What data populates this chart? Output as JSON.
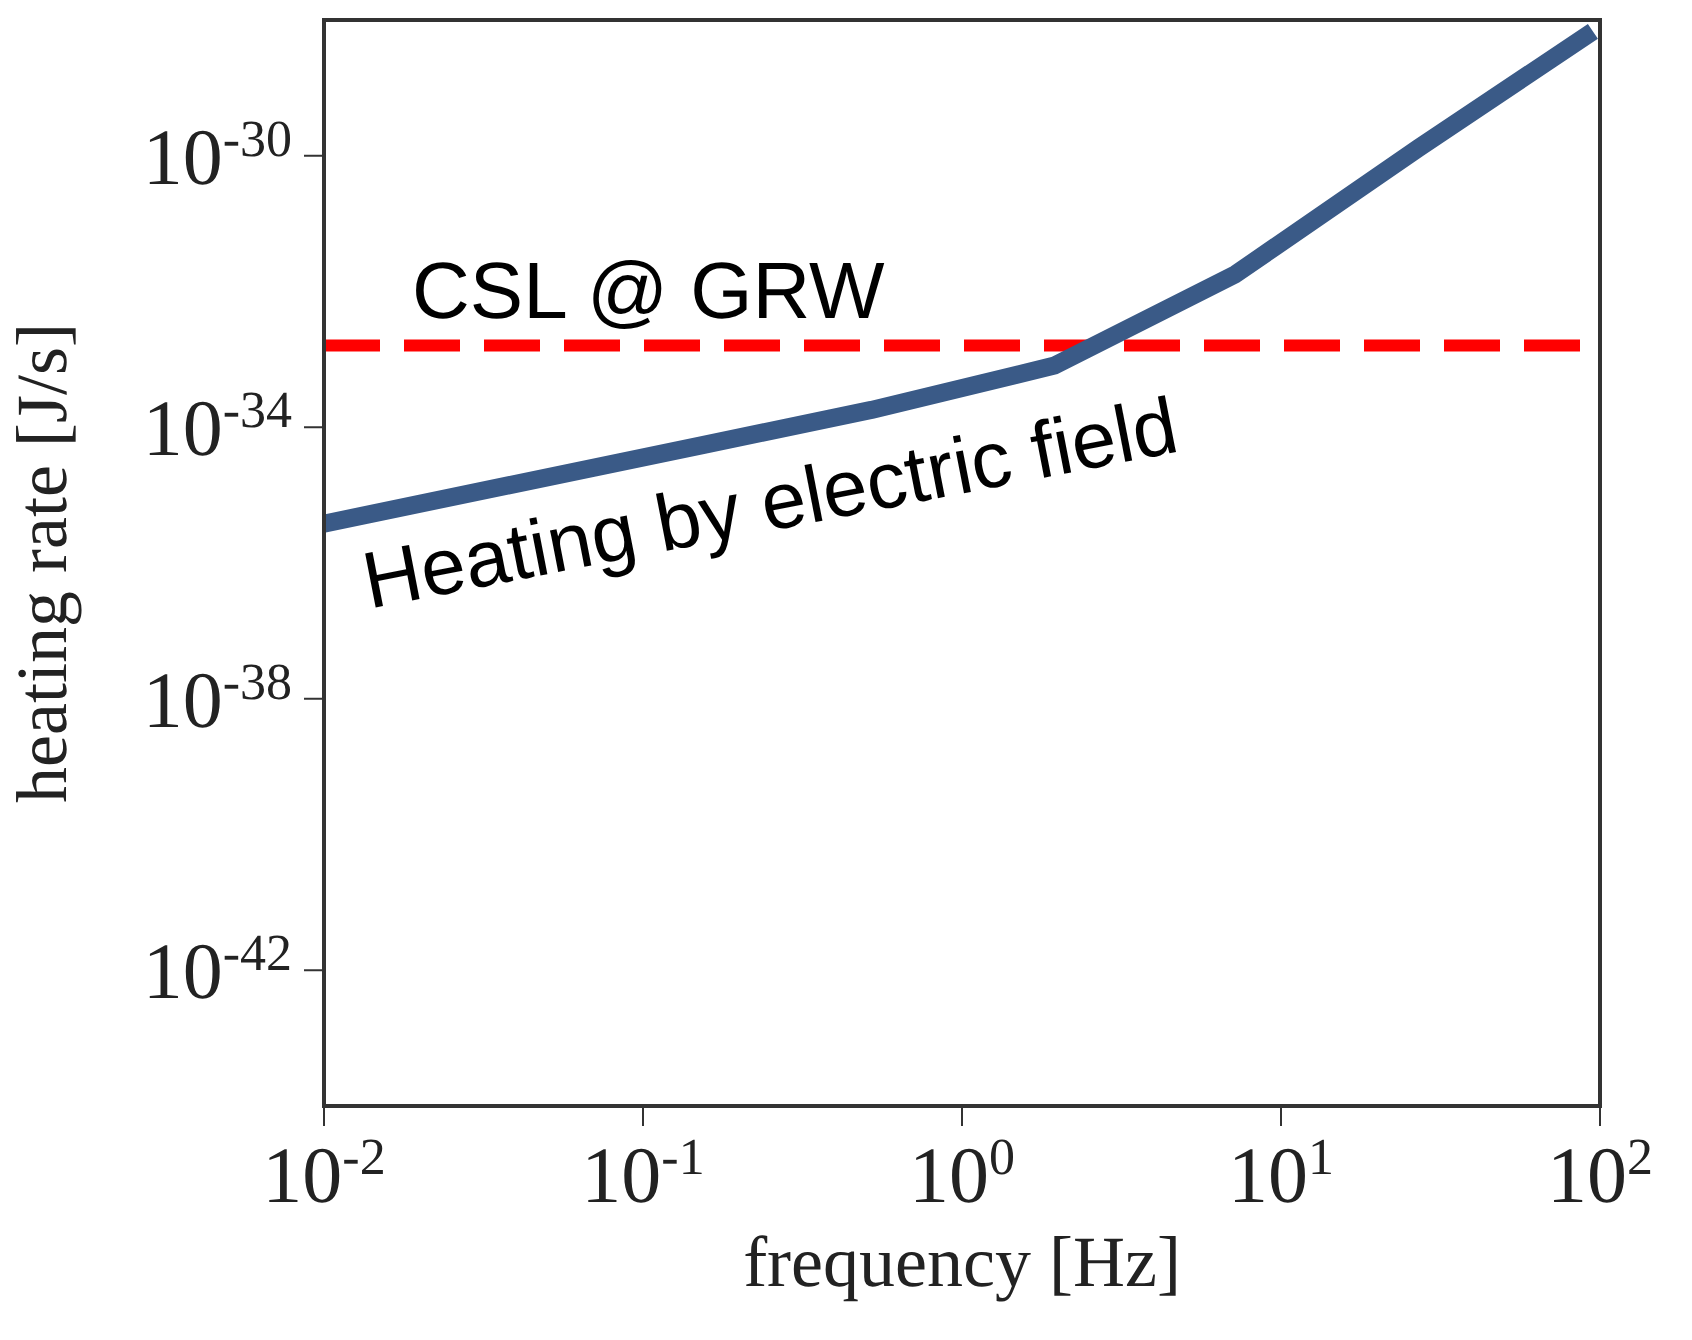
{
  "chart_data": {
    "type": "line",
    "xlabel": "frequency [Hz]",
    "ylabel": "heating rate [J/s]",
    "log": "xy",
    "marker": "none",
    "line_style": "solid",
    "x": [
      0.01,
      0.155,
      0.52,
      1.95,
      7.2,
      27,
      95
    ],
    "series": [
      {
        "color": "#3a5a87",
        "values": [
          3.8e-36,
          5.5e-35,
          1.8e-34,
          8.1e-34,
          1.8e-32,
          1.3e-30,
          6.8e-29
        ]
      }
    ],
    "xlim": [
      0.01,
      100
    ],
    "xticks": [
      {
        "value": 0.01,
        "label": "10$^{-2}$"
      },
      {
        "value": 0.1,
        "label": "10$^{-1}$"
      },
      {
        "value": 1,
        "label": "10$^{0}$"
      },
      {
        "value": 10,
        "label": "10$^{1}$"
      },
      {
        "value": 100,
        "label": "10$^{2}$"
      }
    ],
    "ylim": [
      1e-44,
      1e-28
    ],
    "yticks": [
      {
        "value": 1e-42,
        "label": "10$^{-42}$"
      },
      {
        "value": 1e-38,
        "label": "10$^{-38}$"
      },
      {
        "value": 1e-34,
        "label": "10$^{-34}$"
      },
      {
        "value": 1e-30,
        "label": "10$^{-30}$"
      }
    ],
    "ref_lines": [
      {
        "axis": "y",
        "value": 1.6e-33,
        "label": "CSL @ GRW",
        "color": "#ff0000",
        "line_style": "dashed"
      }
    ],
    "annotations": [
      "Heating by electric field"
    ]
  }
}
